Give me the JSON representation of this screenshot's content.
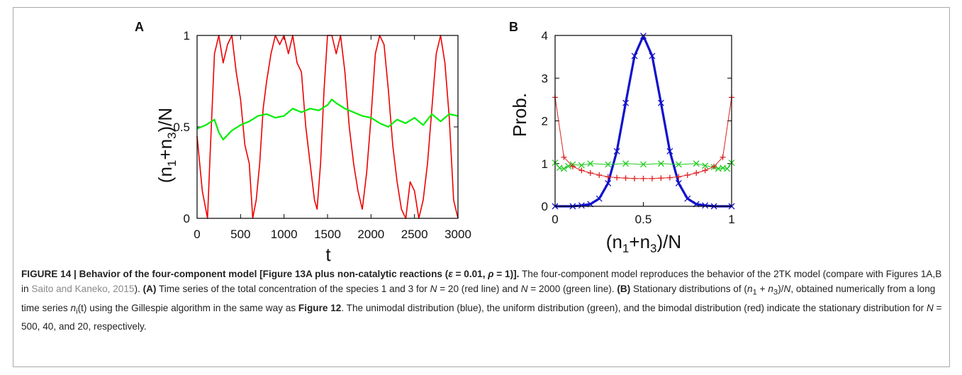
{
  "figure": {
    "panels": {
      "a": {
        "letter": "A"
      },
      "b": {
        "letter": "B"
      }
    },
    "caption": {
      "lead": "FIGURE 14 | Behavior of the four-component model [Figure 13A plus non-catalytic reactions (",
      "eps_sym": "ε",
      "eq1": " = 0.01, ",
      "rho_sym": "ρ",
      "eq2": " = 1)].",
      "text1": " The four-component model reproduces the behavior of the 2TK model (compare with Figures 1A,B in ",
      "citation": "Saito and Kaneko, 2015",
      "text2": "). ",
      "a_label": "(A)",
      "text3": " Time series of the total concentration of the species 1 and 3 for ",
      "n_sym": "N",
      "text4": " = 20 (red line) and ",
      "text5": " = 2000 (green line). ",
      "b_label": "(B)",
      "text6": " Stationary distributions of (",
      "n1": "n",
      "sub1": "1",
      "plus": " + ",
      "n3": "n",
      "sub3": "3",
      "text7": ")/",
      "text8": ", obtained numerically from a long time series ",
      "ni": "n",
      "subi": "i",
      "ti": "(t)",
      "text9": " using the Gillespie algorithm in the same way as ",
      "fig12": "Figure 12",
      "text10": ". The unimodal distribution (blue), the uniform distribution (green), and the bimodal distribution (red) indicate the stationary distribution for ",
      "text11": " = 500, 40, and 20, respectively."
    }
  },
  "chart_data": [
    {
      "type": "line",
      "panel": "A",
      "xlabel": "t",
      "ylabel": "(n1+n3)/N",
      "xlim": [
        0,
        3000
      ],
      "ylim": [
        0,
        1
      ],
      "x_ticks": [
        "0",
        "500",
        "1000",
        "1500",
        "2000",
        "2500",
        "3000"
      ],
      "y_ticks": [
        "0",
        "0.5",
        "1"
      ],
      "colors": {
        "N=20": "#ee0000",
        "N=2000": "#00ee00"
      },
      "series": [
        {
          "legend": "N = 20",
          "color": "#ee0000",
          "x": [
            0,
            60,
            120,
            150,
            200,
            250,
            300,
            350,
            400,
            450,
            500,
            550,
            600,
            640,
            680,
            720,
            760,
            800,
            850,
            900,
            950,
            1000,
            1050,
            1100,
            1150,
            1200,
            1250,
            1300,
            1350,
            1380,
            1420,
            1460,
            1500,
            1550,
            1600,
            1650,
            1700,
            1750,
            1800,
            1850,
            1900,
            1950,
            2000,
            2050,
            2100,
            2150,
            2200,
            2250,
            2300,
            2350,
            2400,
            2450,
            2500,
            2550,
            2600,
            2650,
            2700,
            2750,
            2800,
            2850,
            2900,
            2950,
            3000
          ],
          "values": [
            0.45,
            0.15,
            0.0,
            0.35,
            0.9,
            1.0,
            0.85,
            0.95,
            1.0,
            0.8,
            0.65,
            0.4,
            0.3,
            0.0,
            0.1,
            0.3,
            0.6,
            0.75,
            0.9,
            1.0,
            0.95,
            1.0,
            0.9,
            1.0,
            0.85,
            0.8,
            0.5,
            0.3,
            0.1,
            0.05,
            0.3,
            0.7,
            1.0,
            1.0,
            0.9,
            1.0,
            0.8,
            0.5,
            0.3,
            0.15,
            0.05,
            0.25,
            0.55,
            0.9,
            1.0,
            0.95,
            0.7,
            0.4,
            0.2,
            0.05,
            0.0,
            0.2,
            0.15,
            0.0,
            0.1,
            0.3,
            0.6,
            0.9,
            1.0,
            0.85,
            0.55,
            0.1,
            0.0
          ]
        },
        {
          "legend": "N = 2000",
          "color": "#00ee00",
          "x": [
            0,
            100,
            200,
            250,
            300,
            400,
            500,
            600,
            700,
            800,
            900,
            1000,
            1100,
            1200,
            1300,
            1400,
            1500,
            1550,
            1600,
            1700,
            1800,
            1900,
            2000,
            2100,
            2200,
            2300,
            2400,
            2500,
            2600,
            2700,
            2800,
            2900,
            3000
          ],
          "values": [
            0.49,
            0.51,
            0.54,
            0.47,
            0.43,
            0.48,
            0.51,
            0.53,
            0.56,
            0.57,
            0.55,
            0.56,
            0.6,
            0.58,
            0.6,
            0.59,
            0.62,
            0.65,
            0.63,
            0.6,
            0.58,
            0.56,
            0.55,
            0.52,
            0.5,
            0.54,
            0.52,
            0.55,
            0.51,
            0.57,
            0.53,
            0.57,
            0.56
          ]
        }
      ]
    },
    {
      "type": "line",
      "panel": "B",
      "xlabel": "(n1+n3)/N",
      "ylabel": "Prob.",
      "xlim": [
        0,
        1
      ],
      "ylim": [
        0,
        4
      ],
      "x_ticks": [
        "0",
        "0.5",
        "1"
      ],
      "y_ticks": [
        "0",
        "1",
        "2",
        "3",
        "4"
      ],
      "series": [
        {
          "legend": "N = 500",
          "color": "#1010cc",
          "marker": "x",
          "note": "Gaussian, mean 0.5, sd 0.1",
          "x": [
            0.0,
            0.1,
            0.15,
            0.2,
            0.25,
            0.3,
            0.35,
            0.4,
            0.45,
            0.5,
            0.55,
            0.6,
            0.65,
            0.7,
            0.75,
            0.8,
            0.85,
            0.9,
            1.0
          ],
          "values": [
            0.0,
            0.0,
            0.02,
            0.05,
            0.18,
            0.54,
            1.29,
            2.42,
            3.52,
            3.99,
            3.52,
            2.42,
            1.29,
            0.54,
            0.18,
            0.05,
            0.02,
            0.0,
            0.0
          ]
        },
        {
          "legend": "N = 40",
          "color": "#22cc22",
          "marker": "x",
          "x": [
            0.0,
            0.025,
            0.05,
            0.075,
            0.1,
            0.15,
            0.2,
            0.3,
            0.4,
            0.5,
            0.6,
            0.7,
            0.8,
            0.85,
            0.9,
            0.925,
            0.95,
            0.975,
            1.0
          ],
          "values": [
            1.02,
            0.9,
            0.88,
            0.94,
            0.98,
            0.96,
            1.0,
            0.98,
            1.0,
            0.98,
            1.0,
            0.98,
            1.0,
            0.95,
            0.92,
            0.88,
            0.9,
            0.88,
            1.02
          ]
        },
        {
          "legend": "N = 20",
          "color": "#dd2020",
          "marker": "+",
          "x": [
            0.0,
            0.05,
            0.1,
            0.15,
            0.2,
            0.25,
            0.3,
            0.35,
            0.4,
            0.45,
            0.5,
            0.55,
            0.6,
            0.65,
            0.7,
            0.75,
            0.8,
            0.85,
            0.9,
            0.95,
            1.0
          ],
          "values": [
            2.55,
            1.15,
            0.93,
            0.84,
            0.78,
            0.73,
            0.69,
            0.67,
            0.66,
            0.65,
            0.65,
            0.65,
            0.66,
            0.67,
            0.69,
            0.73,
            0.78,
            0.84,
            0.93,
            1.15,
            2.55
          ]
        }
      ]
    }
  ]
}
